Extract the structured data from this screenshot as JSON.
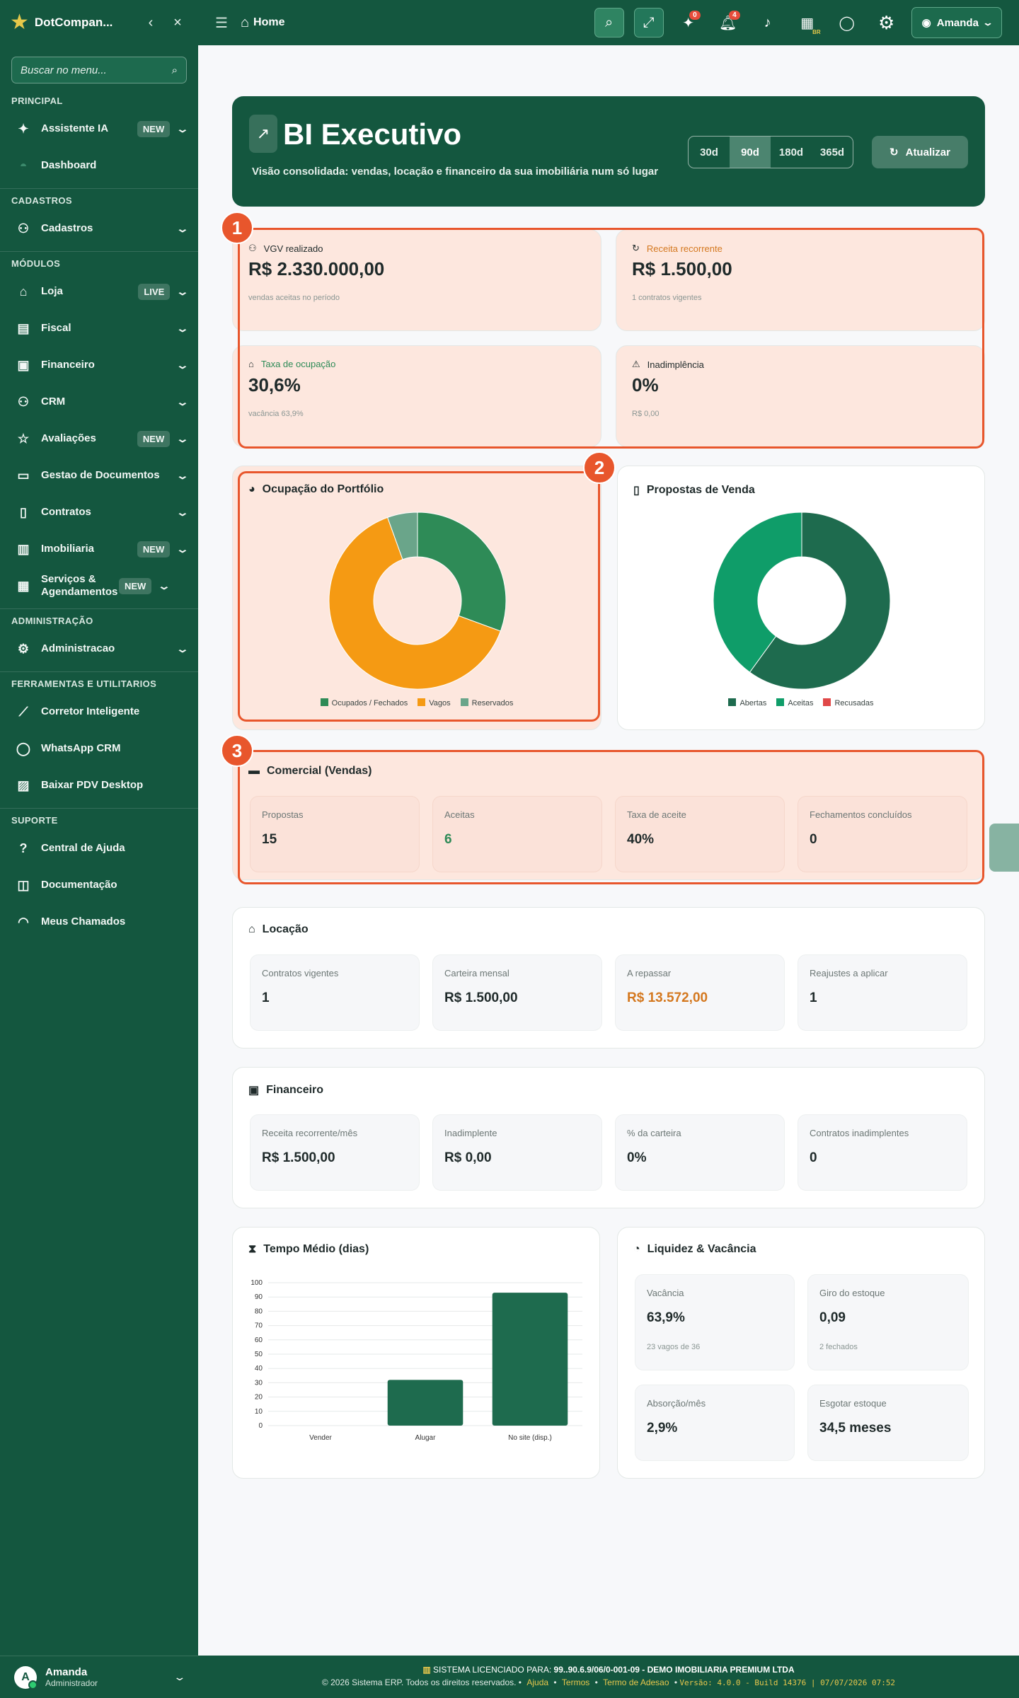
{
  "sidebar": {
    "brand": "DotCompan...",
    "search_placeholder": "Buscar no menu...",
    "sections": {
      "principal": "PRINCIPAL",
      "cadastros": "CADASTROS",
      "modulos": "MÓDULOS",
      "admin": "ADMINISTRAÇÃO",
      "tools": "FERRAMENTAS E UTILITARIOS",
      "suporte": "SUPORTE"
    },
    "items": {
      "assistente": "Assistente IA",
      "dashboard": "Dashboard",
      "cadastros": "Cadastros",
      "loja": "Loja",
      "fiscal": "Fiscal",
      "financeiro": "Financeiro",
      "crm": "CRM",
      "avaliacoes": "Avaliações",
      "gestao": "Gestao de Documentos",
      "contratos": "Contratos",
      "imobiliaria": "Imobiliaria",
      "servicos": "Serviços & Agendamentos",
      "administracao": "Administracao",
      "corretor": "Corretor Inteligente",
      "whatsapp": "WhatsApp CRM",
      "pdv": "Baixar PDV Desktop",
      "ajuda": "Central de Ajuda",
      "doc": "Documentação",
      "chamados": "Meus Chamados"
    },
    "badges": {
      "new": "NEW",
      "live": "LIVE"
    },
    "user": {
      "initial": "A",
      "name": "Amanda",
      "role": "Administrador"
    }
  },
  "topbar": {
    "home": "Home",
    "notif_ai": "0",
    "notif_bell": "4",
    "bell_tag": "BR",
    "user": "Amanda"
  },
  "hero": {
    "title": "BI Executivo",
    "subtitle": "Visão consolidada: vendas, locação e financeiro da sua imobiliária num só lugar",
    "periods": [
      "30d",
      "90d",
      "180d",
      "365d"
    ],
    "active_period": "90d",
    "refresh": "Atualizar"
  },
  "kpis": [
    {
      "label": "VGV realizado",
      "value": "R$ 2.330.000,00",
      "foot": "vendas aceitas no período",
      "color": "#1f2a2a"
    },
    {
      "label": "Receita recorrente",
      "value": "R$ 1.500,00",
      "foot": "1 contratos vigentes",
      "color": "#d4781f"
    },
    {
      "label": "Taxa de ocupação",
      "value": "30,6%",
      "foot": "vacância 63,9%",
      "color": "#2e8b57"
    },
    {
      "label": "Inadimplência",
      "value": "0%",
      "foot": "R$ 0,00",
      "color": "#1f2a2a"
    }
  ],
  "annotations": [
    "1",
    "2",
    "3"
  ],
  "occupancy": {
    "title": "Ocupação do Portfólio",
    "legend": [
      "Ocupados / Fechados",
      "Vagos",
      "Reservados"
    ],
    "colors": [
      "#2e8b57",
      "#f59a13",
      "#6aa58a"
    ],
    "values": [
      30.6,
      63.9,
      5.5
    ]
  },
  "proposals": {
    "title": "Propostas de Venda",
    "legend": [
      "Abertas",
      "Aceitas",
      "Recusadas"
    ],
    "colors": [
      "#1e6b4e",
      "#0f9d69",
      "#e04848"
    ],
    "values": [
      60,
      40,
      0
    ]
  },
  "comercial": {
    "title": "Comercial (Vendas)",
    "tiles": [
      {
        "l": "Propostas",
        "v": "15"
      },
      {
        "l": "Aceitas",
        "v": "6"
      },
      {
        "l": "Taxa de aceite",
        "v": "40%"
      },
      {
        "l": "Fechamentos concluídos",
        "v": "0"
      }
    ]
  },
  "locacao": {
    "title": "Locação",
    "tiles": [
      {
        "l": "Contratos vigentes",
        "v": "1"
      },
      {
        "l": "Carteira mensal",
        "v": "R$ 1.500,00"
      },
      {
        "l": "A repassar",
        "v": "R$ 13.572,00"
      },
      {
        "l": "Reajustes a aplicar",
        "v": "1"
      }
    ]
  },
  "financeiro": {
    "title": "Financeiro",
    "tiles": [
      {
        "l": "Receita recorrente/mês",
        "v": "R$ 1.500,00"
      },
      {
        "l": "Inadimplente",
        "v": "R$ 0,00"
      },
      {
        "l": "% da carteira",
        "v": "0%"
      },
      {
        "l": "Contratos inadimplentes",
        "v": "0"
      }
    ]
  },
  "chart_data": {
    "type": "bar",
    "title": "Tempo Médio (dias)",
    "categories": [
      "Vender",
      "Alugar",
      "No site (disp.)"
    ],
    "values": [
      0,
      32,
      93
    ],
    "ylim": [
      0,
      100
    ],
    "yticks": [
      0,
      10,
      20,
      30,
      40,
      50,
      60,
      70,
      80,
      90,
      100
    ],
    "color": "#1e6b4e"
  },
  "liquidez": {
    "title": "Liquidez & Vacância",
    "tiles": [
      {
        "l": "Vacância",
        "v": "63,9%",
        "f": "23 vagos de 36"
      },
      {
        "l": "Giro do estoque",
        "v": "0,09",
        "f": "2 fechados"
      },
      {
        "l": "Absorção/mês",
        "v": "2,9%",
        "f": ""
      },
      {
        "l": "Esgotar estoque",
        "v": "34,5 meses",
        "f": ""
      }
    ]
  },
  "footer": {
    "license_label": "SISTEMA LICENCIADO PARA:",
    "license": "99..90.6.9/06/0-001-09 - DEMO IMOBILIARIA PREMIUM LTDA",
    "copy": "© 2026 Sistema ERP. Todos os direitos reservados.",
    "links": [
      "Ajuda",
      "Termos",
      "Termo de Adesao"
    ],
    "version": "Versão: 4.0.0 - Build 14376 | 07/07/2026 07:52"
  }
}
